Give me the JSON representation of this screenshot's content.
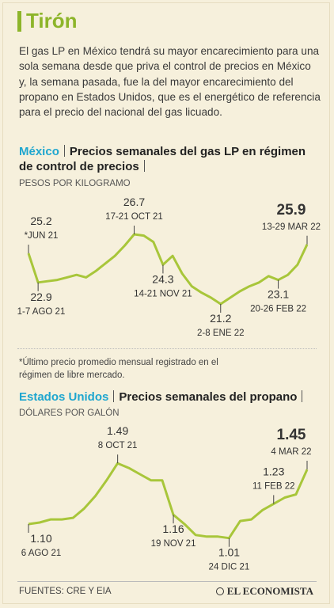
{
  "title": "Tirón",
  "intro": "El gas LP en México tendrá su mayor encarecimiento para una sola semana desde que priva el control de precios en México y, la semana pasada, fue la del mayor encarecimiento del propano en Estados Unidos, que es el energético de referencia para el precio del nacional del gas licuado.",
  "footnote": "*Último precio promedio mensual registrado en el régimen de libre mercado.",
  "sources": "FUENTES: CRE Y EIA",
  "logo": "EL ECONOMISTA",
  "chart_data": [
    {
      "type": "line",
      "country": "México",
      "title": "Precios semanales del gas LP en régimen de control de precios",
      "unit": "PESOS POR KILOGRAMO",
      "color": "#a8c63a",
      "ylim": [
        20,
        28
      ],
      "categories": [
        "*JUN 21",
        "1-7 AGO 21",
        null,
        null,
        null,
        null,
        null,
        null,
        null,
        null,
        null,
        "17-21 OCT 21",
        null,
        null,
        "14-21 NOV 21",
        null,
        null,
        null,
        null,
        null,
        "2-8 ENE 22",
        null,
        null,
        null,
        null,
        null,
        "20-26 FEB 22",
        null,
        null,
        "13-29 MAR 22"
      ],
      "values": [
        25.2,
        22.9,
        23.0,
        23.1,
        23.3,
        23.5,
        23.3,
        23.8,
        24.4,
        25.0,
        25.8,
        26.7,
        26.6,
        26.1,
        24.3,
        25.0,
        23.6,
        22.6,
        22.1,
        21.7,
        21.2,
        21.7,
        22.2,
        22.6,
        22.9,
        23.4,
        23.1,
        23.5,
        24.3,
        25.9
      ],
      "value_labels": [
        "25.2",
        "22.9",
        null,
        null,
        null,
        null,
        null,
        null,
        null,
        null,
        null,
        "26.7",
        null,
        null,
        "24.3",
        null,
        null,
        null,
        null,
        null,
        "21.2",
        null,
        null,
        null,
        null,
        null,
        "23.1",
        null,
        null,
        "25.9"
      ]
    },
    {
      "type": "line",
      "country": "Estados Unidos",
      "title": "Precios semanales del propano",
      "unit": "DÓLARES POR GALÓN",
      "color": "#a8c63a",
      "ylim": [
        1.0,
        1.6
      ],
      "categories": [
        "6 AGO 21",
        null,
        null,
        null,
        null,
        null,
        null,
        null,
        "8 OCT 21",
        null,
        null,
        null,
        null,
        "19 NOV 21",
        null,
        null,
        null,
        null,
        "24 DIC 21",
        null,
        null,
        null,
        "11 FEB 22",
        null,
        null,
        "4 MAR 22"
      ],
      "values": [
        1.1,
        1.11,
        1.13,
        1.13,
        1.14,
        1.2,
        1.28,
        1.38,
        1.49,
        1.46,
        1.42,
        1.38,
        1.38,
        1.16,
        1.1,
        1.03,
        1.02,
        1.02,
        1.01,
        1.12,
        1.13,
        1.19,
        1.23,
        1.27,
        1.29,
        1.45
      ],
      "value_labels": [
        "1.10",
        null,
        null,
        null,
        null,
        null,
        null,
        null,
        "1.49",
        null,
        null,
        null,
        null,
        "1.16",
        null,
        null,
        null,
        null,
        "1.01",
        null,
        null,
        null,
        "1.23",
        null,
        null,
        "1.45"
      ]
    }
  ]
}
